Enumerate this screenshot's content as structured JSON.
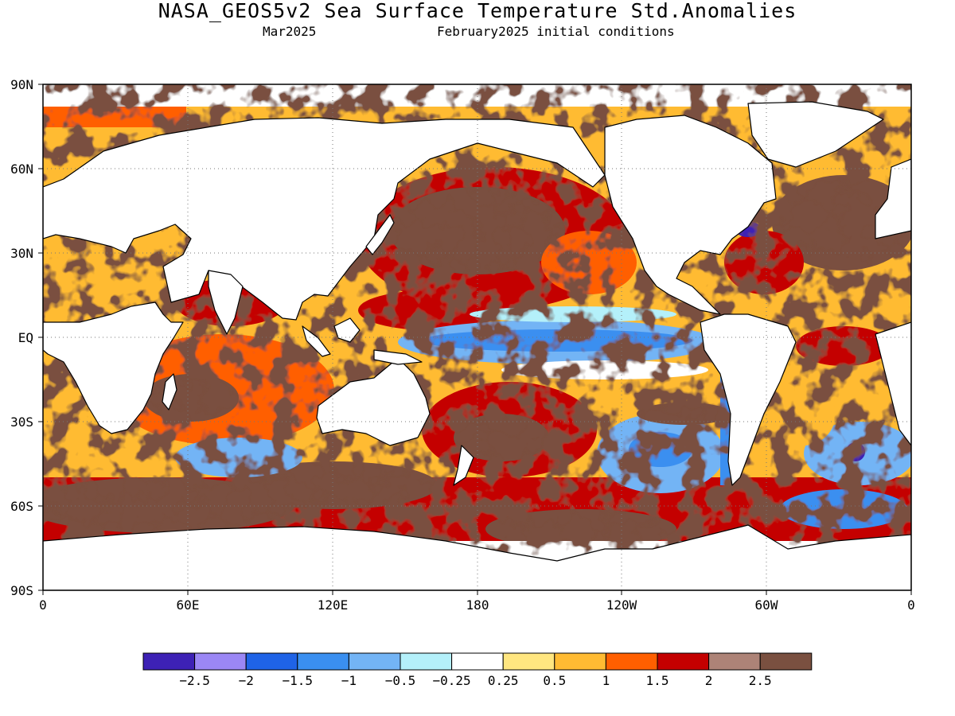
{
  "header": {
    "title": "NASA_GEOS5v2 Sea Surface Temperature Std.Anomalies",
    "valid_month": "Mar2025",
    "init_conditions": "February2025 initial conditions"
  },
  "map": {
    "lat_labels": [
      "90N",
      "60N",
      "30N",
      "EQ",
      "30S",
      "60S",
      "90S"
    ],
    "lon_labels": [
      "0",
      "60E",
      "120E",
      "180",
      "120W",
      "60W",
      "0"
    ],
    "land_color": "#ffffff",
    "coast_color": "#000000",
    "anomaly_features": [
      {
        "name": "east-pacific-cold-tongue",
        "lon": [
          150,
          270
        ],
        "lat": [
          -6,
          8
        ],
        "value": -1
      },
      {
        "name": "peru-coast-cold",
        "lon": [
          270,
          285
        ],
        "lat": [
          -30,
          -5
        ],
        "value": -0.5
      },
      {
        "name": "south-pacific-cold-band",
        "lon": [
          195,
          275
        ],
        "lat": [
          -60,
          -35
        ],
        "value": -1
      },
      {
        "name": "north-pacific-warm",
        "lon": [
          140,
          230
        ],
        "lat": [
          20,
          55
        ],
        "value": 2.5
      },
      {
        "name": "west-pacific-warm",
        "lon": [
          130,
          190
        ],
        "lat": [
          5,
          25
        ],
        "value": 1.5
      },
      {
        "name": "north-atlantic-warm",
        "lon": [
          300,
          360
        ],
        "lat": [
          20,
          65
        ],
        "value": 2.5
      },
      {
        "name": "southern-ocean-warm",
        "lon": [
          10,
          150
        ],
        "lat": [
          -65,
          -45
        ],
        "value": 2.5
      },
      {
        "name": "indian-ocean-warm",
        "lon": [
          40,
          100
        ],
        "lat": [
          -25,
          10
        ],
        "value": 1.5
      },
      {
        "name": "south-atlantic-cold",
        "lon": [
          320,
          355
        ],
        "lat": [
          -55,
          -30
        ],
        "value": -1
      },
      {
        "name": "gulf-stream-cold-spot",
        "lon": [
          295,
          305
        ],
        "lat": [
          35,
          42
        ],
        "value": -2.5
      }
    ]
  },
  "colorbar": {
    "colors": [
      "#3d21b5",
      "#9b87f5",
      "#1f63e6",
      "#3a8ff0",
      "#73b4f5",
      "#b4f0fa",
      "#ffffff",
      "#ffe680",
      "#ffbb33",
      "#ff5f00",
      "#c40000",
      "#ad8377",
      "#7a5040"
    ],
    "labels": [
      "-2.5",
      "-2",
      "-1.5",
      "-1",
      "-0.5",
      "-0.25",
      "0.25",
      "0.5",
      "1",
      "1.5",
      "2",
      "2.5"
    ]
  }
}
